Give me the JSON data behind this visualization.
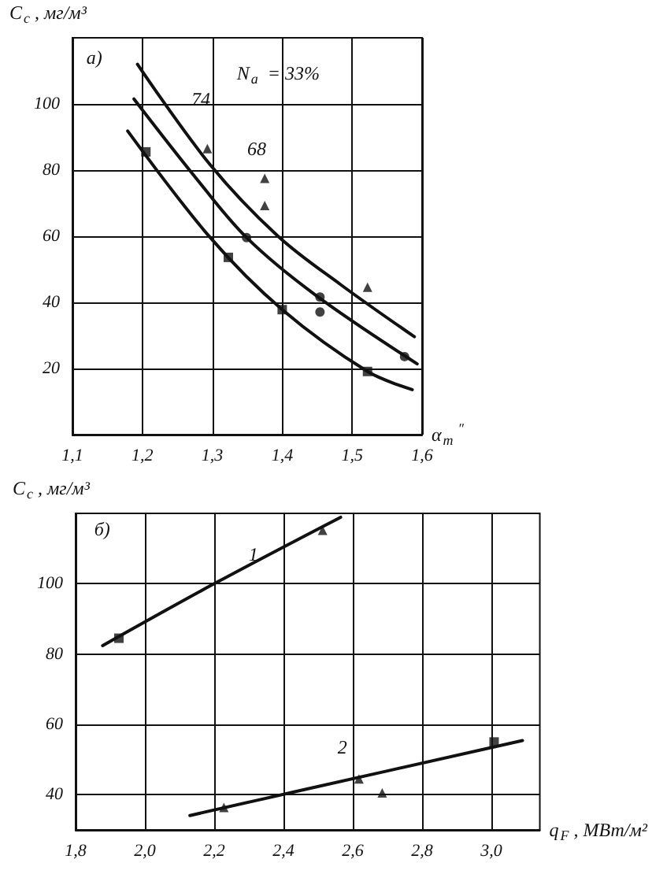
{
  "chart_data": [
    {
      "type": "line",
      "xlabel": "α$_{т}$$^{″}$",
      "ylabel": "C$_{с}$, мг/м³",
      "xlim": [
        1.1,
        1.6
      ],
      "xticks": [
        {
          "value": 1.1,
          "label": "1,1"
        },
        {
          "value": 1.2,
          "label": "1,2"
        },
        {
          "value": 1.3,
          "label": "1,3"
        },
        {
          "value": 1.4,
          "label": "1,4"
        },
        {
          "value": 1.5,
          "label": "1,5"
        },
        {
          "value": 1.6,
          "label": "1,6"
        }
      ],
      "ylim": [
        0,
        120
      ],
      "yticks": [
        20,
        40,
        60,
        80,
        100
      ],
      "grid": true,
      "series": [
        {
          "color": "#111111",
          "x": [
            1.193,
            1.297,
            1.394,
            1.484,
            1.589
          ],
          "values": [
            112,
            81.6,
            60,
            45.3,
            29.6
          ]
        },
        {
          "color": "#111111",
          "x": [
            1.188,
            1.274,
            1.349,
            1.447,
            1.593
          ],
          "values": [
            101.5,
            78.3,
            59.6,
            42.3,
            21.4
          ]
        },
        {
          "color": "#111111",
          "x": [
            1.179,
            1.297,
            1.4,
            1.522,
            1.586
          ],
          "values": [
            91.8,
            59.6,
            37.8,
            19.1,
            13.6
          ]
        },
        {
          "type": "scatter",
          "marker": "triangle",
          "color": "#111111",
          "x": [
            1.293,
            1.375,
            1.375,
            1.522
          ],
          "values": [
            86.5,
            77.5,
            69.3,
            44.6
          ]
        },
        {
          "type": "scatter",
          "marker": "circle",
          "color": "#111111",
          "x": [
            1.349,
            1.454,
            1.454,
            1.575
          ],
          "values": [
            59.6,
            41.6,
            37.1,
            23.6
          ]
        },
        {
          "type": "scatter",
          "marker": "square",
          "color": "#111111",
          "x": [
            1.205,
            1.323,
            1.4,
            1.522
          ],
          "values": [
            85.5,
            53.6,
            37.8,
            19.1
          ]
        }
      ],
      "annotations": [
        "а)",
        "N$_{а}$ = 33%",
        "74",
        "68"
      ]
    },
    {
      "type": "line",
      "xlabel": "q$_{F}$, МВт/м²",
      "ylabel": "C$_{с}$, мг/м³",
      "xlim": [
        1.8,
        3.14
      ],
      "xticks": [
        {
          "value": 1.8,
          "label": "1,8"
        },
        {
          "value": 2.0,
          "label": "2,0"
        },
        {
          "value": 2.2,
          "label": "2,2"
        },
        {
          "value": 2.4,
          "label": "2,4"
        },
        {
          "value": 2.6,
          "label": "2,6"
        },
        {
          "value": 2.8,
          "label": "2,8"
        },
        {
          "value": 3.0,
          "label": "3,0"
        }
      ],
      "ylim": [
        30,
        120
      ],
      "yticks": [
        40,
        60,
        80,
        100
      ],
      "grid": true,
      "series": [
        {
          "color": "#111111",
          "x": [
            1.878,
            2.2,
            2.565
          ],
          "values": [
            82.4,
            100,
            118.9
          ]
        },
        {
          "color": "#111111",
          "x": [
            2.13,
            2.453,
            3.09
          ],
          "values": [
            34.1,
            41.3,
            55.4
          ]
        },
        {
          "type": "scatter",
          "marker": "triangle",
          "color": "#111111",
          "x": [
            2.513,
            2.228,
            2.618,
            2.685
          ],
          "values": [
            115.2,
            36.4,
            44.5,
            40.5
          ]
        },
        {
          "type": "scatter",
          "marker": "square",
          "color": "#111111",
          "x": [
            1.925,
            3.008
          ],
          "values": [
            84.5,
            55
          ]
        }
      ],
      "annotations": [
        "б)",
        "1",
        "2"
      ]
    }
  ]
}
